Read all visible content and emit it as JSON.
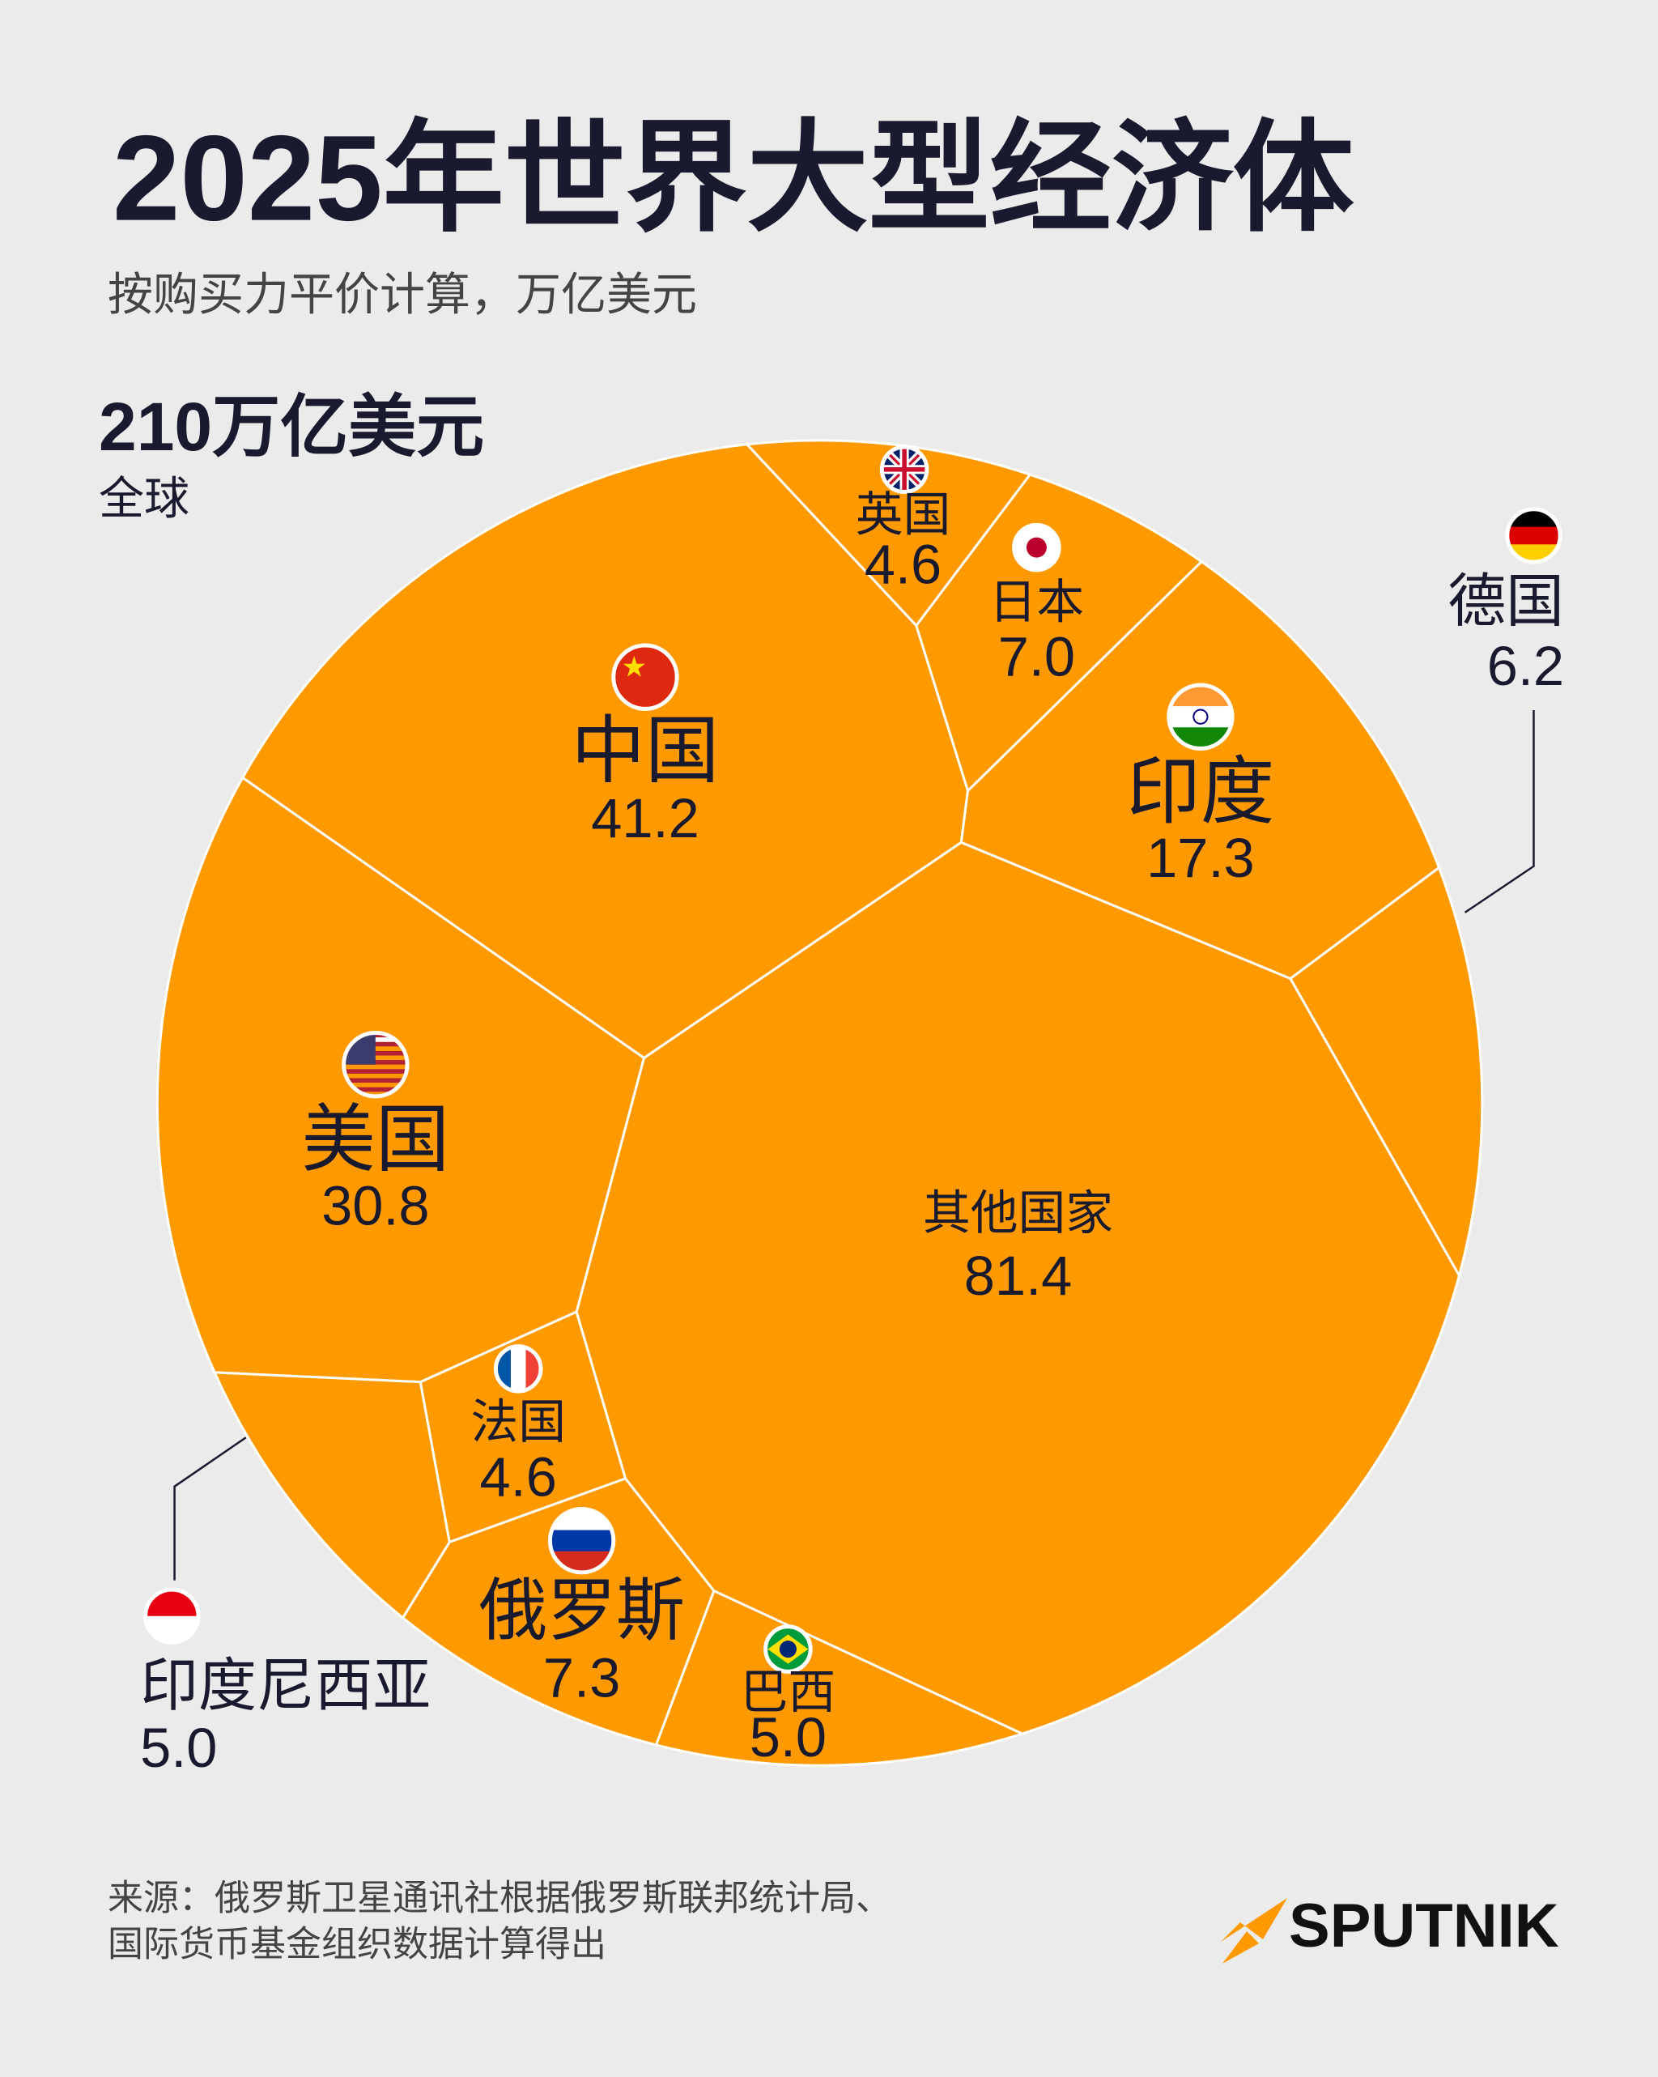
{
  "chart_data": {
    "type": "voronoi",
    "title": "2025年世界大型经济体",
    "subtitle": "按购买力平价计算，万亿美元",
    "total_label": "210万亿美元",
    "total_sublabel": "全球",
    "categories": [
      "其他国家",
      "中国",
      "美国",
      "印度",
      "俄罗斯",
      "日本",
      "德国",
      "印度尼西亚",
      "巴西",
      "英国",
      "法国"
    ],
    "values": [
      81.4,
      41.2,
      30.8,
      17.3,
      7.3,
      7.0,
      6.2,
      5.0,
      5.0,
      4.6,
      4.6
    ],
    "value_labels": [
      "81.4",
      "41.2",
      "30.8",
      "17.3",
      "7.3",
      "7.0",
      "6.2",
      "5.0",
      "5.0",
      "4.6",
      "4.6"
    ],
    "color": "#ff9900"
  },
  "source": [
    "来源：俄罗斯卫星通讯社根据俄罗斯联邦统计局、",
    "国际货币基金组织数据计算得出"
  ],
  "logo": "SPUTNIK"
}
